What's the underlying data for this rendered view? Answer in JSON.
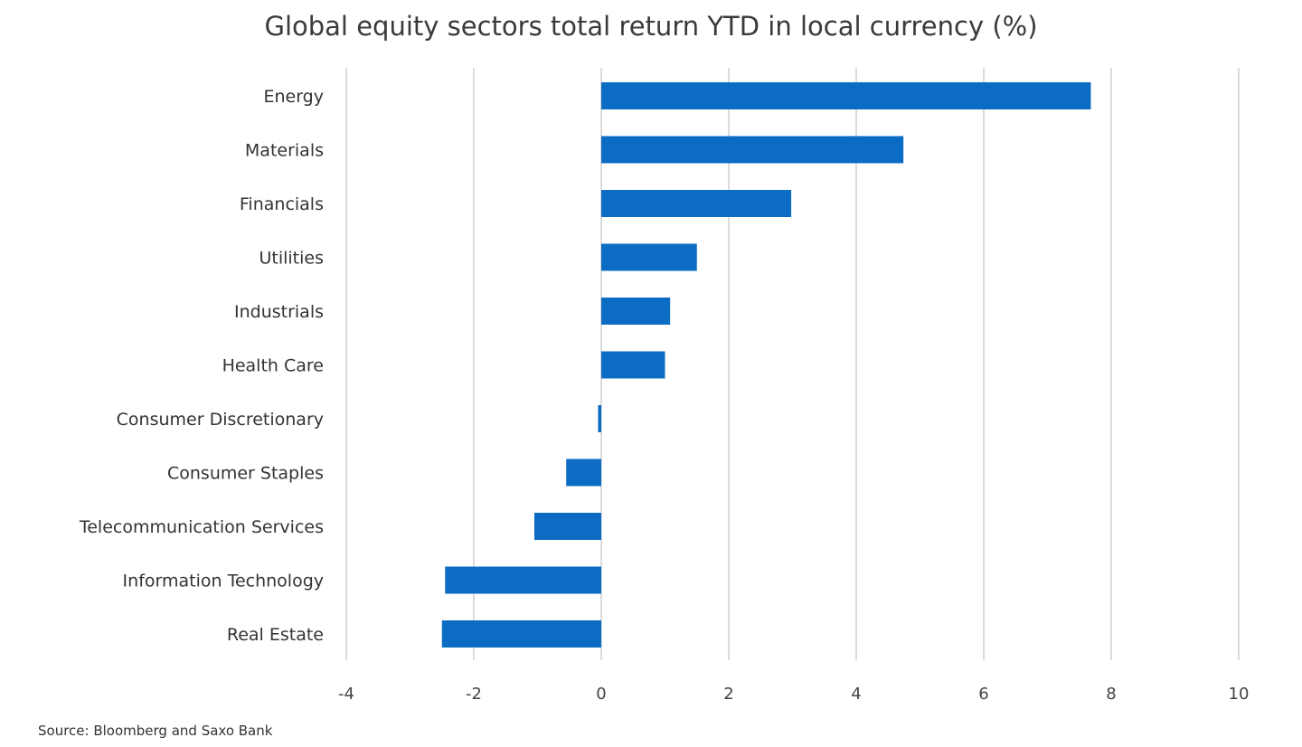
{
  "chart_data": {
    "type": "bar",
    "orientation": "horizontal",
    "title": "Global equity sectors total return YTD in local currency (%)",
    "categories": [
      "Energy",
      "Materials",
      "Financials",
      "Utilities",
      "Industrials",
      "Health Care",
      "Consumer Discretionary",
      "Consumer Staples",
      "Telecommunication Services",
      "Information Technology",
      "Real Estate"
    ],
    "values": [
      7.68,
      4.74,
      2.98,
      1.5,
      1.08,
      1.0,
      -0.05,
      -0.55,
      -1.05,
      -2.45,
      -2.5
    ],
    "xlim": [
      -4,
      10
    ],
    "xticks": [
      -4,
      -2,
      0,
      2,
      4,
      6,
      8,
      10
    ],
    "xtick_labels": [
      "-4",
      "-2",
      "0",
      "2",
      "4",
      "6",
      "8",
      "10"
    ],
    "xlabel": "",
    "ylabel": "",
    "grid": "vertical",
    "legend": "none",
    "bar_color": "#0c6cc4",
    "grid_color": "#cfcfcf"
  },
  "source": "Source: Bloomberg and Saxo Bank"
}
